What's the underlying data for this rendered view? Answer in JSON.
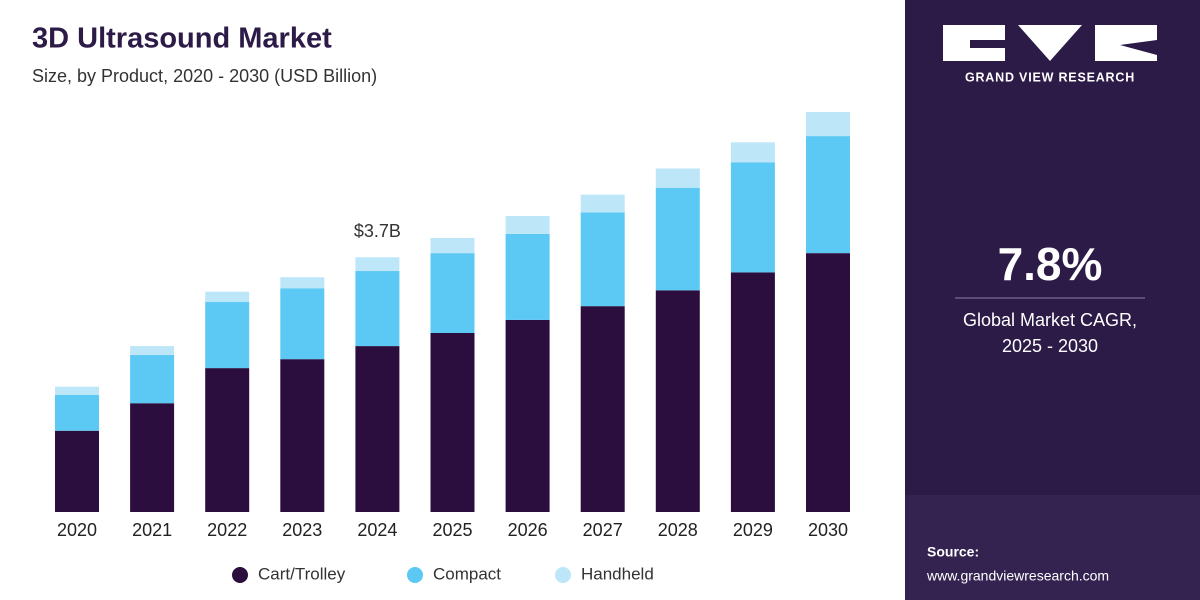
{
  "chart_data": {
    "type": "bar",
    "stacked": true,
    "title": "3D Ultrasound Market",
    "subtitle": "Size, by Product, 2020 - 2030 (USD Billion)",
    "categories": [
      "2020",
      "2021",
      "2022",
      "2023",
      "2024",
      "2025",
      "2026",
      "2027",
      "2028",
      "2029",
      "2030"
    ],
    "series": [
      {
        "name": "Cart/Trolley",
        "color": "#2c0e3e",
        "values": [
          1.18,
          1.58,
          2.09,
          2.22,
          2.41,
          2.6,
          2.79,
          2.99,
          3.22,
          3.48,
          3.76
        ]
      },
      {
        "name": "Compact",
        "color": "#5cc8f4",
        "values": [
          0.52,
          0.7,
          0.96,
          1.03,
          1.09,
          1.16,
          1.25,
          1.36,
          1.49,
          1.6,
          1.7
        ]
      },
      {
        "name": "Handheld",
        "color": "#bde7f8",
        "values": [
          0.12,
          0.13,
          0.15,
          0.16,
          0.2,
          0.22,
          0.26,
          0.26,
          0.28,
          0.29,
          0.35
        ]
      }
    ],
    "annotations": [
      {
        "category": "2024",
        "value": 3.7,
        "label": "$3.7B"
      }
    ],
    "legend": "bottom"
  },
  "panel": {
    "brand": "GRAND VIEW RESEARCH",
    "cagr": "7.8%",
    "cagr_caption": [
      "Global Market CAGR,",
      "2025 - 2030"
    ],
    "source_label": "Source:",
    "source_url": "www.grandviewresearch.com"
  }
}
